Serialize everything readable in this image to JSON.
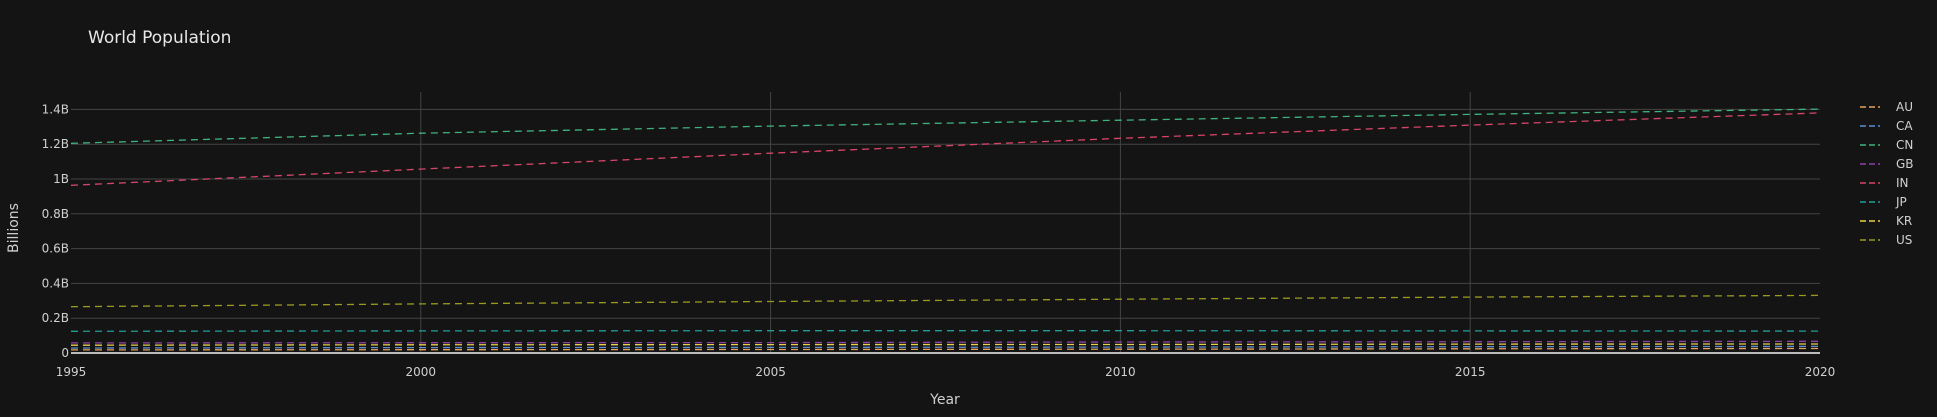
{
  "chart_data": {
    "type": "line",
    "title": "World Population",
    "xlabel": "Year",
    "ylabel": "Billions",
    "x": [
      1995,
      2000,
      2005,
      2010,
      2015,
      2020
    ],
    "xlim": [
      1995,
      2020
    ],
    "ylim": [
      0,
      1.5
    ],
    "x_ticks": [
      "1995",
      "2000",
      "2005",
      "2010",
      "2015",
      "2020"
    ],
    "y_ticks": [
      {
        "value": 0,
        "label": "0"
      },
      {
        "value": 0.2,
        "label": "0.2B"
      },
      {
        "value": 0.4,
        "label": "0.4B"
      },
      {
        "value": 0.6,
        "label": "0.6B"
      },
      {
        "value": 0.8,
        "label": "0.8B"
      },
      {
        "value": 1.0,
        "label": "1B"
      },
      {
        "value": 1.2,
        "label": "1.2B"
      },
      {
        "value": 1.4,
        "label": "1.4B"
      }
    ],
    "grid": true,
    "line_style": "dashed",
    "legend_position": "right",
    "series": [
      {
        "name": "AU",
        "color": "#e8a25a",
        "values": [
          0.018,
          0.019,
          0.02,
          0.022,
          0.024,
          0.026
        ]
      },
      {
        "name": "CA",
        "color": "#5b8fd4",
        "values": [
          0.029,
          0.031,
          0.032,
          0.034,
          0.036,
          0.038
        ]
      },
      {
        "name": "CN",
        "color": "#3fb37f",
        "values": [
          1.205,
          1.263,
          1.304,
          1.338,
          1.371,
          1.402
        ]
      },
      {
        "name": "GB",
        "color": "#8e3fa8",
        "values": [
          0.058,
          0.059,
          0.06,
          0.063,
          0.065,
          0.067
        ]
      },
      {
        "name": "IN",
        "color": "#d6456a",
        "values": [
          0.964,
          1.057,
          1.148,
          1.234,
          1.31,
          1.38
        ]
      },
      {
        "name": "JP",
        "color": "#1f9e9a",
        "values": [
          0.125,
          0.127,
          0.128,
          0.128,
          0.127,
          0.126
        ]
      },
      {
        "name": "KR",
        "color": "#e8d24a",
        "values": [
          0.045,
          0.047,
          0.048,
          0.049,
          0.051,
          0.052
        ]
      },
      {
        "name": "US",
        "color": "#9a9a1e",
        "values": [
          0.266,
          0.282,
          0.296,
          0.309,
          0.321,
          0.331
        ]
      }
    ]
  }
}
